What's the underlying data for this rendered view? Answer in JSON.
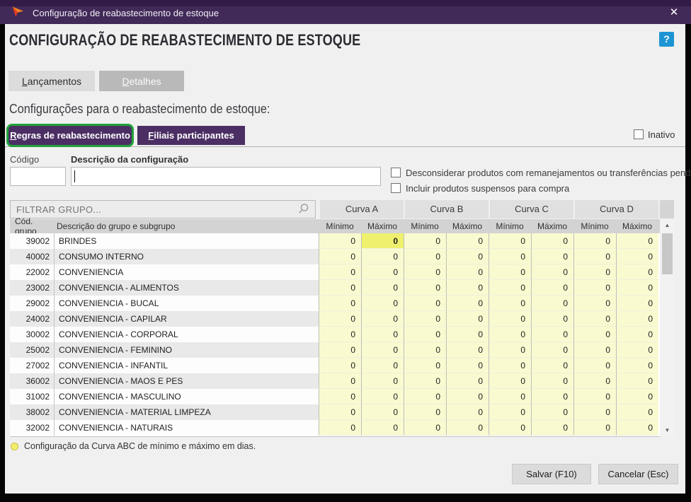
{
  "titlebar": {
    "title": "Configuração de reabastecimento de estoque",
    "close_label": "✕"
  },
  "header": {
    "page_title": "CONFIGURAÇÃO DE REABASTECIMENTO DE ESTOQUE",
    "help_label": "?"
  },
  "nav_buttons": {
    "lancamentos": "Lançamentos",
    "detalhes": "Detalhes"
  },
  "section_label": "Configurações para o reabastecimento de estoque:",
  "tabs": {
    "regras": "Regras de reabastecimento",
    "filiais": "Filiais participantes"
  },
  "inativo_label": "Inativo",
  "form": {
    "codigo_label": "Código",
    "codigo_value": "",
    "descricao_label": "Descrição da configuração",
    "descricao_value": "",
    "check_desconsiderar": "Desconsiderar produtos com remanejamentos ou transferências pendentes",
    "check_incluir": "Incluir produtos suspensos para compra"
  },
  "filter": {
    "placeholder": "FILTRAR GRUPO..."
  },
  "table": {
    "group_headers": [
      "Curva A",
      "Curva B",
      "Curva C",
      "Curva D"
    ],
    "col_headers": {
      "code": "Cód. grupo",
      "desc": "Descrição do grupo e subgrupo",
      "min": "Mínimo",
      "max": "Máximo"
    },
    "selected_cell": {
      "row": 0,
      "col": 1
    },
    "rows": [
      {
        "code": "39002",
        "desc": "BRINDES",
        "values": [
          0,
          0,
          0,
          0,
          0,
          0,
          0,
          0
        ]
      },
      {
        "code": "40002",
        "desc": "CONSUMO INTERNO",
        "values": [
          0,
          0,
          0,
          0,
          0,
          0,
          0,
          0
        ]
      },
      {
        "code": "22002",
        "desc": "CONVENIENCIA",
        "values": [
          0,
          0,
          0,
          0,
          0,
          0,
          0,
          0
        ]
      },
      {
        "code": "23002",
        "desc": "CONVENIENCIA - ALIMENTOS",
        "values": [
          0,
          0,
          0,
          0,
          0,
          0,
          0,
          0
        ]
      },
      {
        "code": "29002",
        "desc": "CONVENIENCIA - BUCAL",
        "values": [
          0,
          0,
          0,
          0,
          0,
          0,
          0,
          0
        ]
      },
      {
        "code": "24002",
        "desc": "CONVENIENCIA - CAPILAR",
        "values": [
          0,
          0,
          0,
          0,
          0,
          0,
          0,
          0
        ]
      },
      {
        "code": "30002",
        "desc": "CONVENIENCIA - CORPORAL",
        "values": [
          0,
          0,
          0,
          0,
          0,
          0,
          0,
          0
        ]
      },
      {
        "code": "25002",
        "desc": "CONVENIENCIA - FEMININO",
        "values": [
          0,
          0,
          0,
          0,
          0,
          0,
          0,
          0
        ]
      },
      {
        "code": "27002",
        "desc": "CONVENIENCIA - INFANTIL",
        "values": [
          0,
          0,
          0,
          0,
          0,
          0,
          0,
          0
        ]
      },
      {
        "code": "36002",
        "desc": "CONVENIENCIA - MAOS E PES",
        "values": [
          0,
          0,
          0,
          0,
          0,
          0,
          0,
          0
        ]
      },
      {
        "code": "31002",
        "desc": "CONVENIENCIA - MASCULINO",
        "values": [
          0,
          0,
          0,
          0,
          0,
          0,
          0,
          0
        ]
      },
      {
        "code": "38002",
        "desc": "CONVENIENCIA - MATERIAL LIMPEZA",
        "values": [
          0,
          0,
          0,
          0,
          0,
          0,
          0,
          0
        ]
      },
      {
        "code": "32002",
        "desc": "CONVENIENCIA - NATURAIS",
        "values": [
          0,
          0,
          0,
          0,
          0,
          0,
          0,
          0
        ]
      }
    ]
  },
  "legend": "Configuração da Curva ABC de mínimo e máximo em dias.",
  "footer": {
    "save": "Salvar (F10)",
    "cancel": "Cancelar (Esc)"
  },
  "colors": {
    "titlebar": "#412a58",
    "tab_purple": "#4b2e63",
    "focus_green": "#22a13b",
    "help_blue": "#1d95d4",
    "cell_yellow": "#fafad0",
    "cell_selected": "#eef06e"
  }
}
